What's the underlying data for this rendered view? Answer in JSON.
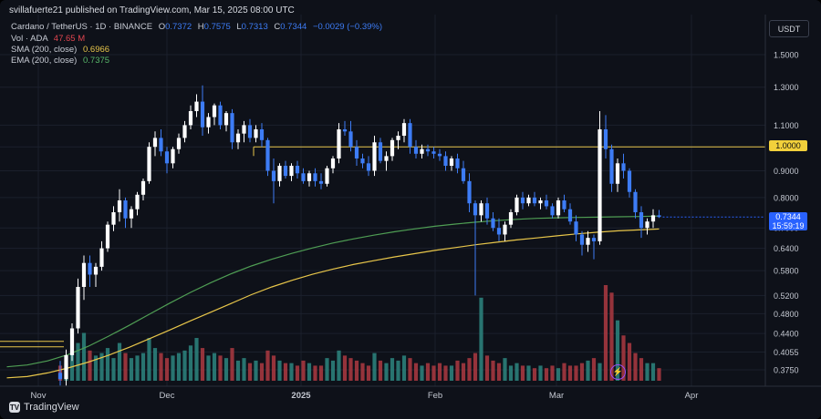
{
  "publisher": "svillafuerte21 published on TradingView.com, Mar 15, 2025 08:00 UTC",
  "legend": {
    "symbol": "Cardano / TetherUS · 1D · BINANCE",
    "open_label": "O",
    "open": "0.7372",
    "high_label": "H",
    "high": "0.7575",
    "low_label": "L",
    "low": "0.7313",
    "close_label": "C",
    "close": "0.7344",
    "change": "−0.0029 (−0.39%)",
    "vol_label": "Vol · ADA",
    "vol_value": "47.65 M",
    "sma_label": "SMA (200, close)",
    "sma_value": "0.6966",
    "ema_label": "EMA (200, close)",
    "ema_value": "0.7375"
  },
  "currency": "USDT",
  "price_tag": {
    "price": "0.7344",
    "countdown": "15:59:19"
  },
  "level_tag": "1.0000",
  "brand": "TradingView",
  "colors": {
    "up": "#ffffff",
    "down": "#3d7cf5",
    "vol_up": "#2b7f7a",
    "vol_down": "#a4373f",
    "sma": "#e8c64a",
    "ema": "#4f9e54",
    "level": "#e8c64a",
    "bg": "#0e1119",
    "grid": "#1b202c"
  },
  "chart_data": {
    "type": "candlestick",
    "scale": "log",
    "yticks": [
      "0.3750",
      "0.4055",
      "0.4400",
      "0.4800",
      "0.5200",
      "0.5800",
      "0.6400",
      "0.7000",
      "0.8000",
      "0.9000",
      "1.0000",
      "1.1000",
      "1.3000",
      "1.5000"
    ],
    "xticks": [
      "Nov",
      "Dec",
      "2025",
      "Feb",
      "Mar",
      "Apr"
    ],
    "horizontal_level": 1.0,
    "current_price": 0.7344,
    "candles": [
      {
        "o": 0.37,
        "h": 0.39,
        "l": 0.35,
        "c": 0.36
      },
      {
        "o": 0.36,
        "h": 0.41,
        "l": 0.35,
        "c": 0.4
      },
      {
        "o": 0.4,
        "h": 0.46,
        "l": 0.39,
        "c": 0.45
      },
      {
        "o": 0.45,
        "h": 0.56,
        "l": 0.44,
        "c": 0.54
      },
      {
        "o": 0.54,
        "h": 0.62,
        "l": 0.51,
        "c": 0.6
      },
      {
        "o": 0.6,
        "h": 0.62,
        "l": 0.54,
        "c": 0.57
      },
      {
        "o": 0.57,
        "h": 0.6,
        "l": 0.54,
        "c": 0.59
      },
      {
        "o": 0.59,
        "h": 0.66,
        "l": 0.58,
        "c": 0.64
      },
      {
        "o": 0.64,
        "h": 0.72,
        "l": 0.63,
        "c": 0.71
      },
      {
        "o": 0.71,
        "h": 0.77,
        "l": 0.69,
        "c": 0.75
      },
      {
        "o": 0.75,
        "h": 0.83,
        "l": 0.72,
        "c": 0.79
      },
      {
        "o": 0.79,
        "h": 0.8,
        "l": 0.7,
        "c": 0.73
      },
      {
        "o": 0.73,
        "h": 0.77,
        "l": 0.7,
        "c": 0.76
      },
      {
        "o": 0.76,
        "h": 0.82,
        "l": 0.74,
        "c": 0.81
      },
      {
        "o": 0.81,
        "h": 0.87,
        "l": 0.79,
        "c": 0.86
      },
      {
        "o": 0.86,
        "h": 1.02,
        "l": 0.85,
        "c": 1.0
      },
      {
        "o": 1.0,
        "h": 1.07,
        "l": 0.96,
        "c": 1.04
      },
      {
        "o": 1.04,
        "h": 1.08,
        "l": 0.96,
        "c": 0.98
      },
      {
        "o": 0.98,
        "h": 1.0,
        "l": 0.89,
        "c": 0.93
      },
      {
        "o": 0.93,
        "h": 1.0,
        "l": 0.91,
        "c": 0.99
      },
      {
        "o": 0.99,
        "h": 1.06,
        "l": 0.97,
        "c": 1.04
      },
      {
        "o": 1.04,
        "h": 1.12,
        "l": 1.02,
        "c": 1.1
      },
      {
        "o": 1.1,
        "h": 1.2,
        "l": 1.08,
        "c": 1.17
      },
      {
        "o": 1.17,
        "h": 1.26,
        "l": 1.14,
        "c": 1.22
      },
      {
        "o": 1.22,
        "h": 1.31,
        "l": 1.05,
        "c": 1.09
      },
      {
        "o": 1.09,
        "h": 1.16,
        "l": 1.06,
        "c": 1.14
      },
      {
        "o": 1.14,
        "h": 1.21,
        "l": 1.1,
        "c": 1.2
      },
      {
        "o": 1.2,
        "h": 1.22,
        "l": 1.08,
        "c": 1.1
      },
      {
        "o": 1.1,
        "h": 1.17,
        "l": 1.07,
        "c": 1.16
      },
      {
        "o": 1.16,
        "h": 1.18,
        "l": 0.99,
        "c": 1.02
      },
      {
        "o": 1.02,
        "h": 1.08,
        "l": 0.99,
        "c": 1.06
      },
      {
        "o": 1.06,
        "h": 1.12,
        "l": 1.02,
        "c": 1.1
      },
      {
        "o": 1.1,
        "h": 1.13,
        "l": 1.02,
        "c": 1.04
      },
      {
        "o": 1.04,
        "h": 1.1,
        "l": 1.02,
        "c": 1.08
      },
      {
        "o": 1.08,
        "h": 1.11,
        "l": 1.0,
        "c": 1.03
      },
      {
        "o": 1.03,
        "h": 1.04,
        "l": 0.88,
        "c": 0.9
      },
      {
        "o": 0.9,
        "h": 0.95,
        "l": 0.78,
        "c": 0.86
      },
      {
        "o": 0.86,
        "h": 0.93,
        "l": 0.84,
        "c": 0.92
      },
      {
        "o": 0.92,
        "h": 0.94,
        "l": 0.87,
        "c": 0.88
      },
      {
        "o": 0.88,
        "h": 0.93,
        "l": 0.86,
        "c": 0.92
      },
      {
        "o": 0.92,
        "h": 0.94,
        "l": 0.87,
        "c": 0.89
      },
      {
        "o": 0.89,
        "h": 0.91,
        "l": 0.85,
        "c": 0.86
      },
      {
        "o": 0.86,
        "h": 0.9,
        "l": 0.84,
        "c": 0.89
      },
      {
        "o": 0.89,
        "h": 0.91,
        "l": 0.84,
        "c": 0.86
      },
      {
        "o": 0.86,
        "h": 0.89,
        "l": 0.83,
        "c": 0.85
      },
      {
        "o": 0.85,
        "h": 0.92,
        "l": 0.84,
        "c": 0.91
      },
      {
        "o": 0.91,
        "h": 0.96,
        "l": 0.89,
        "c": 0.95
      },
      {
        "o": 0.95,
        "h": 1.11,
        "l": 0.93,
        "c": 1.08
      },
      {
        "o": 1.08,
        "h": 1.12,
        "l": 1.05,
        "c": 1.07
      },
      {
        "o": 1.07,
        "h": 1.12,
        "l": 0.98,
        "c": 1.0
      },
      {
        "o": 1.0,
        "h": 1.03,
        "l": 0.92,
        "c": 0.95
      },
      {
        "o": 0.95,
        "h": 0.97,
        "l": 0.91,
        "c": 0.93
      },
      {
        "o": 0.93,
        "h": 0.96,
        "l": 0.88,
        "c": 0.9
      },
      {
        "o": 0.9,
        "h": 1.05,
        "l": 0.88,
        "c": 1.02
      },
      {
        "o": 1.02,
        "h": 1.04,
        "l": 0.93,
        "c": 0.94
      },
      {
        "o": 0.94,
        "h": 0.98,
        "l": 0.9,
        "c": 0.96
      },
      {
        "o": 0.96,
        "h": 1.04,
        "l": 0.94,
        "c": 1.03
      },
      {
        "o": 1.03,
        "h": 1.07,
        "l": 0.99,
        "c": 1.05
      },
      {
        "o": 1.05,
        "h": 1.13,
        "l": 1.02,
        "c": 1.11
      },
      {
        "o": 1.11,
        "h": 1.13,
        "l": 0.97,
        "c": 1.0
      },
      {
        "o": 1.0,
        "h": 1.03,
        "l": 0.95,
        "c": 0.97
      },
      {
        "o": 0.97,
        "h": 1.01,
        "l": 0.95,
        "c": 0.99
      },
      {
        "o": 0.99,
        "h": 1.01,
        "l": 0.96,
        "c": 0.98
      },
      {
        "o": 0.98,
        "h": 1.0,
        "l": 0.95,
        "c": 0.97
      },
      {
        "o": 0.97,
        "h": 0.99,
        "l": 0.94,
        "c": 0.96
      },
      {
        "o": 0.96,
        "h": 0.98,
        "l": 0.9,
        "c": 0.92
      },
      {
        "o": 0.92,
        "h": 0.96,
        "l": 0.9,
        "c": 0.95
      },
      {
        "o": 0.95,
        "h": 0.97,
        "l": 0.89,
        "c": 0.91
      },
      {
        "o": 0.91,
        "h": 0.94,
        "l": 0.85,
        "c": 0.86
      },
      {
        "o": 0.86,
        "h": 0.89,
        "l": 0.75,
        "c": 0.78
      },
      {
        "o": 0.78,
        "h": 0.79,
        "l": 0.52,
        "c": 0.74
      },
      {
        "o": 0.74,
        "h": 0.79,
        "l": 0.72,
        "c": 0.78
      },
      {
        "o": 0.78,
        "h": 0.8,
        "l": 0.71,
        "c": 0.73
      },
      {
        "o": 0.73,
        "h": 0.75,
        "l": 0.69,
        "c": 0.7
      },
      {
        "o": 0.7,
        "h": 0.73,
        "l": 0.66,
        "c": 0.68
      },
      {
        "o": 0.68,
        "h": 0.72,
        "l": 0.66,
        "c": 0.71
      },
      {
        "o": 0.71,
        "h": 0.76,
        "l": 0.7,
        "c": 0.75
      },
      {
        "o": 0.75,
        "h": 0.81,
        "l": 0.74,
        "c": 0.8
      },
      {
        "o": 0.8,
        "h": 0.82,
        "l": 0.76,
        "c": 0.78
      },
      {
        "o": 0.78,
        "h": 0.81,
        "l": 0.77,
        "c": 0.8
      },
      {
        "o": 0.8,
        "h": 0.82,
        "l": 0.77,
        "c": 0.78
      },
      {
        "o": 0.78,
        "h": 0.8,
        "l": 0.76,
        "c": 0.79
      },
      {
        "o": 0.79,
        "h": 0.81,
        "l": 0.76,
        "c": 0.77
      },
      {
        "o": 0.77,
        "h": 0.78,
        "l": 0.73,
        "c": 0.74
      },
      {
        "o": 0.74,
        "h": 0.8,
        "l": 0.73,
        "c": 0.79
      },
      {
        "o": 0.79,
        "h": 0.81,
        "l": 0.75,
        "c": 0.76
      },
      {
        "o": 0.76,
        "h": 0.78,
        "l": 0.71,
        "c": 0.72
      },
      {
        "o": 0.72,
        "h": 0.74,
        "l": 0.66,
        "c": 0.68
      },
      {
        "o": 0.68,
        "h": 0.69,
        "l": 0.62,
        "c": 0.65
      },
      {
        "o": 0.65,
        "h": 0.69,
        "l": 0.63,
        "c": 0.67
      },
      {
        "o": 0.67,
        "h": 0.68,
        "l": 0.61,
        "c": 0.66
      },
      {
        "o": 0.66,
        "h": 1.17,
        "l": 0.65,
        "c": 1.08
      },
      {
        "o": 1.08,
        "h": 1.15,
        "l": 0.95,
        "c": 0.99
      },
      {
        "o": 0.99,
        "h": 1.01,
        "l": 0.82,
        "c": 0.85
      },
      {
        "o": 0.85,
        "h": 0.95,
        "l": 0.82,
        "c": 0.93
      },
      {
        "o": 0.93,
        "h": 0.97,
        "l": 0.87,
        "c": 0.9
      },
      {
        "o": 0.9,
        "h": 0.91,
        "l": 0.8,
        "c": 0.82
      },
      {
        "o": 0.82,
        "h": 0.83,
        "l": 0.73,
        "c": 0.75
      },
      {
        "o": 0.75,
        "h": 0.77,
        "l": 0.67,
        "c": 0.7
      },
      {
        "o": 0.7,
        "h": 0.73,
        "l": 0.68,
        "c": 0.72
      },
      {
        "o": 0.72,
        "h": 0.76,
        "l": 0.7,
        "c": 0.74
      },
      {
        "o": 0.74,
        "h": 0.7575,
        "l": 0.7313,
        "c": 0.7344
      }
    ],
    "sma200": [
      0.362,
      0.364,
      0.37,
      0.378,
      0.388,
      0.4,
      0.414,
      0.43,
      0.447,
      0.465,
      0.483,
      0.502,
      0.522,
      0.54,
      0.556,
      0.571,
      0.584,
      0.596,
      0.606,
      0.616,
      0.625,
      0.634,
      0.642,
      0.65,
      0.657,
      0.664,
      0.67,
      0.676,
      0.682,
      0.687,
      0.691,
      0.694,
      0.6966
    ],
    "ema200": [
      0.38,
      0.383,
      0.39,
      0.401,
      0.416,
      0.435,
      0.456,
      0.479,
      0.503,
      0.527,
      0.55,
      0.572,
      0.592,
      0.61,
      0.626,
      0.641,
      0.655,
      0.667,
      0.678,
      0.688,
      0.697,
      0.705,
      0.712,
      0.718,
      0.723,
      0.727,
      0.73,
      0.732,
      0.733,
      0.734,
      0.735,
      0.736,
      0.7375
    ],
    "volume": [
      12,
      14,
      22,
      30,
      38,
      24,
      20,
      22,
      26,
      18,
      30,
      22,
      18,
      20,
      22,
      34,
      26,
      22,
      18,
      20,
      22,
      24,
      28,
      34,
      26,
      20,
      22,
      20,
      18,
      26,
      16,
      18,
      14,
      16,
      14,
      24,
      20,
      16,
      14,
      14,
      12,
      16,
      14,
      12,
      12,
      18,
      16,
      24,
      20,
      18,
      16,
      14,
      12,
      22,
      16,
      14,
      18,
      16,
      20,
      18,
      14,
      12,
      14,
      12,
      14,
      12,
      12,
      16,
      14,
      18,
      22,
      66,
      20,
      16,
      14,
      18,
      12,
      14,
      12,
      12,
      10,
      12,
      10,
      12,
      10,
      14,
      12,
      12,
      14,
      16,
      18,
      14,
      76,
      70,
      48,
      36,
      30,
      22,
      18,
      14,
      14,
      10
    ]
  }
}
